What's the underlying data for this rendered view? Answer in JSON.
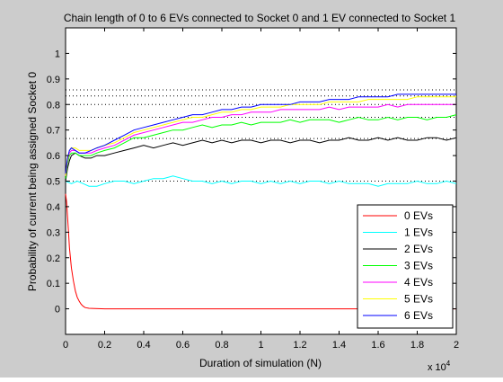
{
  "chart_data": {
    "type": "line",
    "title": "Chain length of 0 to 6 EVs connected to Socket 0 and 1 EV connected to Socket 1",
    "xlabel": "Duration of simulation (N)",
    "ylabel": "Probability of current being assigned Socket 0",
    "x_multiplier_label": "x 10",
    "x_multiplier_exponent": "4",
    "xlim": [
      0,
      20000
    ],
    "ylim": [
      -0.1,
      1.1
    ],
    "x_ticks": [
      0,
      2000,
      4000,
      6000,
      8000,
      10000,
      12000,
      14000,
      16000,
      18000,
      20000
    ],
    "x_tick_labels": [
      "0",
      "0.2",
      "0.4",
      "0.6",
      "0.8",
      "1",
      "1.2",
      "1.4",
      "1.6",
      "1.8",
      "2"
    ],
    "y_ticks": [
      0,
      0.1,
      0.2,
      0.3,
      0.4,
      0.5,
      0.6,
      0.7,
      0.8,
      0.9,
      1
    ],
    "y_tick_labels": [
      "0",
      "0.1",
      "0.2",
      "0.3",
      "0.4",
      "0.5",
      "0.6",
      "0.7",
      "0.8",
      "0.9",
      "1"
    ],
    "reference_lines": [
      0.5,
      0.6667,
      0.75,
      0.8,
      0.8333,
      0.8571
    ],
    "grid": false,
    "legend_placement": "bottom-right",
    "series": [
      {
        "name": "0 EVs",
        "color": "#ff0000",
        "x": [
          0,
          50,
          100,
          150,
          200,
          300,
          400,
          500,
          600,
          700,
          800,
          900,
          1000,
          1200,
          1500,
          2000,
          5000,
          10000,
          15000,
          20000
        ],
        "y": [
          0.45,
          0.42,
          0.36,
          0.3,
          0.24,
          0.16,
          0.11,
          0.07,
          0.045,
          0.03,
          0.018,
          0.01,
          0.005,
          0.002,
          0.001,
          0,
          0,
          0,
          0,
          0
        ]
      },
      {
        "name": "1 EVs",
        "color": "#00ffff",
        "x": [
          0,
          300,
          600,
          900,
          1200,
          1600,
          2000,
          2500,
          3000,
          3500,
          4000,
          4500,
          5000,
          5500,
          6000,
          6500,
          7000,
          7500,
          8000,
          8500,
          9000,
          9500,
          10000,
          10500,
          11000,
          11500,
          12000,
          12500,
          13000,
          13500,
          14000,
          14500,
          15000,
          15500,
          16000,
          16500,
          17000,
          17500,
          18000,
          18500,
          19000,
          19500,
          20000
        ],
        "y": [
          0.5,
          0.49,
          0.5,
          0.49,
          0.48,
          0.48,
          0.49,
          0.5,
          0.5,
          0.49,
          0.5,
          0.51,
          0.51,
          0.52,
          0.51,
          0.5,
          0.5,
          0.49,
          0.5,
          0.49,
          0.5,
          0.5,
          0.49,
          0.5,
          0.49,
          0.5,
          0.49,
          0.5,
          0.5,
          0.49,
          0.5,
          0.49,
          0.49,
          0.49,
          0.48,
          0.49,
          0.49,
          0.49,
          0.5,
          0.49,
          0.49,
          0.5,
          0.49
        ]
      },
      {
        "name": "2 EVs",
        "color": "#000000",
        "x": [
          0,
          100,
          200,
          300,
          500,
          700,
          1000,
          1300,
          1600,
          2000,
          2500,
          3000,
          3500,
          4000,
          4500,
          5000,
          5500,
          6000,
          6500,
          7000,
          7500,
          8000,
          8500,
          9000,
          9500,
          10000,
          10500,
          11000,
          11500,
          12000,
          12500,
          13000,
          13500,
          14000,
          14500,
          15000,
          15500,
          16000,
          16500,
          17000,
          17500,
          18000,
          18500,
          19000,
          19500,
          20000
        ],
        "y": [
          0.5,
          0.55,
          0.58,
          0.6,
          0.61,
          0.6,
          0.59,
          0.59,
          0.6,
          0.6,
          0.61,
          0.62,
          0.63,
          0.64,
          0.63,
          0.64,
          0.65,
          0.64,
          0.65,
          0.66,
          0.65,
          0.66,
          0.65,
          0.66,
          0.66,
          0.65,
          0.66,
          0.66,
          0.65,
          0.66,
          0.66,
          0.65,
          0.66,
          0.66,
          0.67,
          0.66,
          0.66,
          0.67,
          0.66,
          0.67,
          0.66,
          0.66,
          0.67,
          0.67,
          0.66,
          0.67
        ]
      },
      {
        "name": "3 EVs",
        "color": "#00ff00",
        "x": [
          0,
          100,
          200,
          300,
          500,
          700,
          1000,
          1300,
          1600,
          2000,
          2500,
          3000,
          3500,
          4000,
          4500,
          5000,
          5500,
          6000,
          6500,
          7000,
          7500,
          8000,
          8500,
          9000,
          9500,
          10000,
          10500,
          11000,
          11500,
          12000,
          12500,
          13000,
          13500,
          14000,
          14500,
          15000,
          15500,
          16000,
          16500,
          17000,
          17500,
          18000,
          18500,
          19000,
          19500,
          20000
        ],
        "y": [
          0.51,
          0.57,
          0.6,
          0.61,
          0.61,
          0.6,
          0.6,
          0.6,
          0.61,
          0.62,
          0.63,
          0.65,
          0.67,
          0.67,
          0.68,
          0.69,
          0.7,
          0.7,
          0.71,
          0.72,
          0.71,
          0.72,
          0.72,
          0.73,
          0.72,
          0.73,
          0.73,
          0.73,
          0.74,
          0.73,
          0.74,
          0.74,
          0.74,
          0.73,
          0.74,
          0.75,
          0.74,
          0.74,
          0.75,
          0.74,
          0.75,
          0.75,
          0.74,
          0.75,
          0.75,
          0.76
        ]
      },
      {
        "name": "4 EVs",
        "color": "#ff00ff",
        "x": [
          0,
          100,
          200,
          300,
          500,
          700,
          1000,
          1300,
          1600,
          2000,
          2500,
          3000,
          3500,
          4000,
          4500,
          5000,
          5500,
          6000,
          6500,
          7000,
          7500,
          8000,
          8500,
          9000,
          9500,
          10000,
          10500,
          11000,
          11500,
          12000,
          12500,
          13000,
          13500,
          14000,
          14500,
          15000,
          15500,
          16000,
          16500,
          17000,
          17500,
          18000,
          18500,
          19000,
          19500,
          20000
        ],
        "y": [
          0.52,
          0.58,
          0.61,
          0.62,
          0.62,
          0.61,
          0.61,
          0.61,
          0.62,
          0.63,
          0.64,
          0.66,
          0.68,
          0.69,
          0.7,
          0.71,
          0.72,
          0.73,
          0.73,
          0.74,
          0.75,
          0.75,
          0.76,
          0.76,
          0.77,
          0.77,
          0.77,
          0.78,
          0.78,
          0.78,
          0.78,
          0.78,
          0.79,
          0.78,
          0.79,
          0.79,
          0.79,
          0.79,
          0.8,
          0.79,
          0.8,
          0.8,
          0.8,
          0.8,
          0.8,
          0.8
        ]
      },
      {
        "name": "5 EVs",
        "color": "#ffff00",
        "x": [
          0,
          100,
          200,
          300,
          500,
          700,
          1000,
          1300,
          1600,
          2000,
          2500,
          3000,
          3500,
          4000,
          4500,
          5000,
          5500,
          6000,
          6500,
          7000,
          7500,
          8000,
          8500,
          9000,
          9500,
          10000,
          10500,
          11000,
          11500,
          12000,
          12500,
          13000,
          13500,
          14000,
          14500,
          15000,
          15500,
          16000,
          16500,
          17000,
          17500,
          18000,
          18500,
          19000,
          19500,
          20000
        ],
        "y": [
          0.52,
          0.58,
          0.62,
          0.63,
          0.63,
          0.62,
          0.62,
          0.62,
          0.63,
          0.64,
          0.65,
          0.67,
          0.69,
          0.7,
          0.71,
          0.72,
          0.73,
          0.74,
          0.75,
          0.75,
          0.76,
          0.77,
          0.77,
          0.78,
          0.78,
          0.79,
          0.79,
          0.79,
          0.8,
          0.8,
          0.8,
          0.8,
          0.81,
          0.81,
          0.81,
          0.81,
          0.82,
          0.82,
          0.82,
          0.82,
          0.82,
          0.83,
          0.83,
          0.83,
          0.83,
          0.83
        ]
      },
      {
        "name": "6 EVs",
        "color": "#0000ff",
        "x": [
          0,
          100,
          200,
          300,
          500,
          700,
          1000,
          1300,
          1600,
          2000,
          2500,
          3000,
          3500,
          4000,
          4500,
          5000,
          5500,
          6000,
          6500,
          7000,
          7500,
          8000,
          8500,
          9000,
          9500,
          10000,
          10500,
          11000,
          11500,
          12000,
          12500,
          13000,
          13500,
          14000,
          14500,
          15000,
          15500,
          16000,
          16500,
          17000,
          17500,
          18000,
          18500,
          19000,
          19500,
          20000
        ],
        "y": [
          0.53,
          0.59,
          0.62,
          0.63,
          0.62,
          0.61,
          0.61,
          0.62,
          0.63,
          0.64,
          0.66,
          0.68,
          0.7,
          0.71,
          0.72,
          0.73,
          0.74,
          0.75,
          0.76,
          0.76,
          0.77,
          0.78,
          0.78,
          0.79,
          0.79,
          0.8,
          0.8,
          0.8,
          0.8,
          0.81,
          0.81,
          0.81,
          0.82,
          0.82,
          0.82,
          0.83,
          0.83,
          0.83,
          0.83,
          0.84,
          0.84,
          0.84,
          0.84,
          0.84,
          0.84,
          0.84
        ]
      }
    ]
  }
}
